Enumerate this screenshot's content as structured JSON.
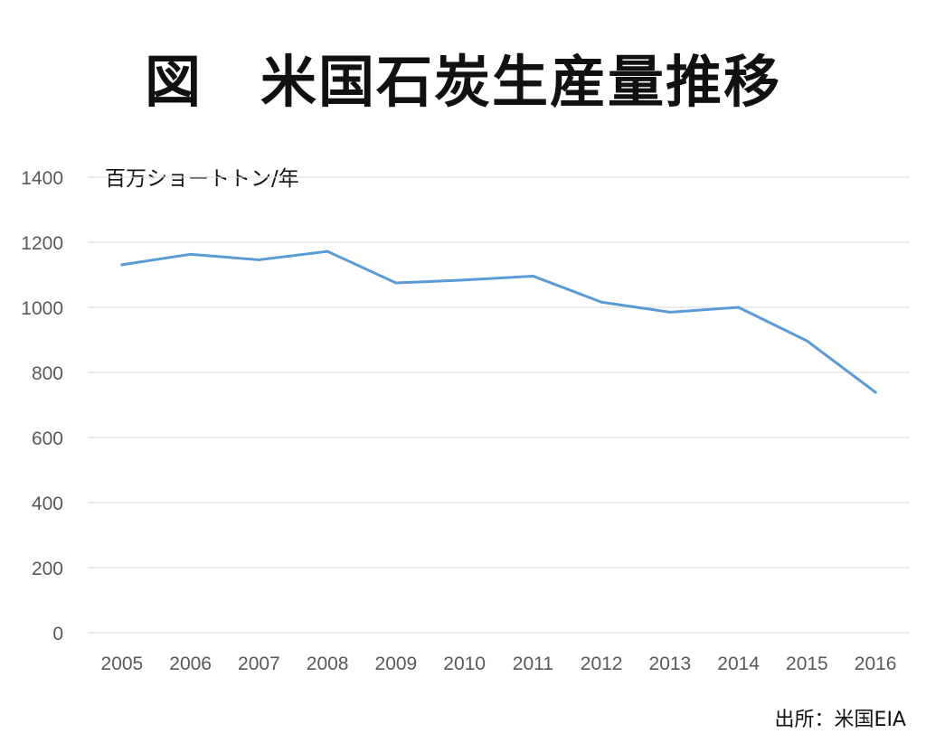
{
  "chart_data": {
    "type": "line",
    "title": "図　米国石炭生産量推移",
    "ylabel": "百万ショートトン/年",
    "source": "出所：米国EIA",
    "x": [
      "2005",
      "2006",
      "2007",
      "2008",
      "2009",
      "2010",
      "2011",
      "2012",
      "2013",
      "2014",
      "2015",
      "2016"
    ],
    "series": [
      {
        "values": [
          1131,
          1163,
          1146,
          1172,
          1075,
          1084,
          1096,
          1016,
          985,
          1000,
          897,
          739
        ]
      }
    ],
    "yticks": [
      "0",
      "200",
      "400",
      "600",
      "800",
      "1000",
      "1200",
      "1400"
    ],
    "ylim": [
      0,
      1400
    ],
    "grid": true,
    "colors": {
      "line": "#5b9bd5",
      "grid": "#d9d9d9",
      "tick": "#595959"
    }
  }
}
